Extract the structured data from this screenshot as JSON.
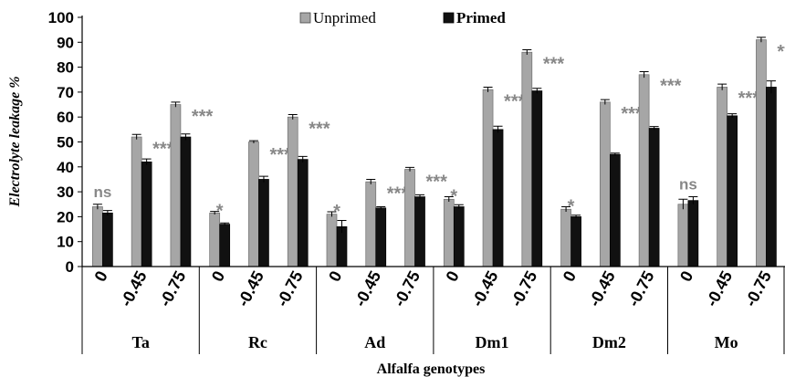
{
  "chart_data": {
    "type": "bar",
    "title": "",
    "xlabel": "Alfalfa genotypes",
    "ylabel": "Electrolyte leakage %",
    "ylim": [
      0,
      100
    ],
    "yticks": [
      "0",
      "10",
      "20",
      "30",
      "40",
      "50",
      "60",
      "70",
      "80",
      "90",
      "100"
    ],
    "grid": false,
    "legend_position": "top-center",
    "series": [
      {
        "name": "Unprimed",
        "color": "#a6a6a6"
      },
      {
        "name": "Primed",
        "color": "#111111"
      }
    ],
    "groups": [
      {
        "genotype": "Ta",
        "levels": [
          {
            "level": "0",
            "unprimed": 24,
            "unprimed_err": 1,
            "primed": 21.5,
            "primed_err": 1,
            "sig": "ns"
          },
          {
            "level": "-0.45",
            "unprimed": 52,
            "unprimed_err": 1,
            "primed": 42,
            "primed_err": 1.2,
            "sig": "***"
          },
          {
            "level": "-0.75",
            "unprimed": 65,
            "unprimed_err": 1,
            "primed": 52,
            "primed_err": 1.2,
            "sig": "***"
          }
        ]
      },
      {
        "genotype": "Rc",
        "levels": [
          {
            "level": "0",
            "unprimed": 21.5,
            "unprimed_err": 0.6,
            "primed": 17,
            "primed_err": 0.5,
            "sig": "*"
          },
          {
            "level": "-0.45",
            "unprimed": 50,
            "unprimed_err": 0.5,
            "primed": 35,
            "primed_err": 1.2,
            "sig": "***"
          },
          {
            "level": "-0.75",
            "unprimed": 60,
            "unprimed_err": 1,
            "primed": 43,
            "primed_err": 1.2,
            "sig": "***"
          }
        ]
      },
      {
        "genotype": "Ad",
        "levels": [
          {
            "level": "0",
            "unprimed": 21,
            "unprimed_err": 1,
            "primed": 16,
            "primed_err": 2.5,
            "sig": "*"
          },
          {
            "level": "-0.45",
            "unprimed": 34,
            "unprimed_err": 1,
            "primed": 23.5,
            "primed_err": 0.5,
            "sig": "***"
          },
          {
            "level": "-0.75",
            "unprimed": 39,
            "unprimed_err": 0.8,
            "primed": 28,
            "primed_err": 0.8,
            "sig": "***"
          }
        ]
      },
      {
        "genotype": "Dm1",
        "levels": [
          {
            "level": "0",
            "unprimed": 27,
            "unprimed_err": 1,
            "primed": 24,
            "primed_err": 0.8,
            "sig": "*"
          },
          {
            "level": "-0.45",
            "unprimed": 71,
            "unprimed_err": 1,
            "primed": 55,
            "primed_err": 1.3,
            "sig": "***"
          },
          {
            "level": "-0.75",
            "unprimed": 86,
            "unprimed_err": 1,
            "primed": 70.5,
            "primed_err": 1,
            "sig": "***"
          }
        ]
      },
      {
        "genotype": "Dm2",
        "levels": [
          {
            "level": "0",
            "unprimed": 23,
            "unprimed_err": 1,
            "primed": 20,
            "primed_err": 0.6,
            "sig": "*"
          },
          {
            "level": "-0.45",
            "unprimed": 66,
            "unprimed_err": 1,
            "primed": 45,
            "primed_err": 0.5,
            "sig": "***"
          },
          {
            "level": "-0.75",
            "unprimed": 77,
            "unprimed_err": 1.2,
            "primed": 55.5,
            "primed_err": 0.7,
            "sig": "***"
          }
        ]
      },
      {
        "genotype": "Mo",
        "levels": [
          {
            "level": "0",
            "unprimed": 25,
            "unprimed_err": 2,
            "primed": 26.5,
            "primed_err": 1.5,
            "sig": "ns"
          },
          {
            "level": "-0.45",
            "unprimed": 72,
            "unprimed_err": 1.2,
            "primed": 60.5,
            "primed_err": 0.8,
            "sig": "***"
          },
          {
            "level": "-0.75",
            "unprimed": 91,
            "unprimed_err": 1,
            "primed": 72,
            "primed_err": 2.5,
            "sig": "***"
          }
        ]
      }
    ]
  }
}
